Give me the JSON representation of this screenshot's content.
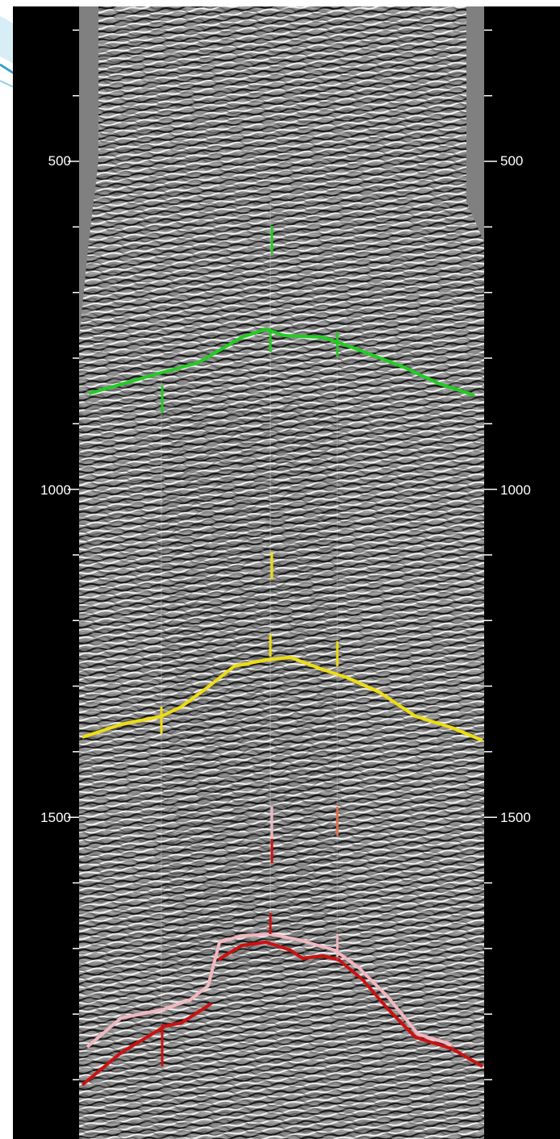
{
  "viewer": {
    "depth_axis": {
      "labeled_ticks": [
        "500",
        "1000",
        "1500"
      ],
      "tick_values": [
        300,
        400,
        500,
        600,
        700,
        800,
        900,
        1000,
        1100,
        1200,
        1300,
        1400,
        1500,
        1600,
        1700,
        1800,
        1900
      ]
    },
    "horizons": [
      {
        "id": "green",
        "color": "#22cc22"
      },
      {
        "id": "yellow",
        "color": "#eedd11"
      },
      {
        "id": "pink",
        "color": "#f0b8c0"
      },
      {
        "id": "red",
        "color": "#cc1111"
      }
    ],
    "well_markers_colors": [
      "#22cc22",
      "#eedd11",
      "#f0b8c0",
      "#cc1111",
      "#e0704a"
    ]
  }
}
